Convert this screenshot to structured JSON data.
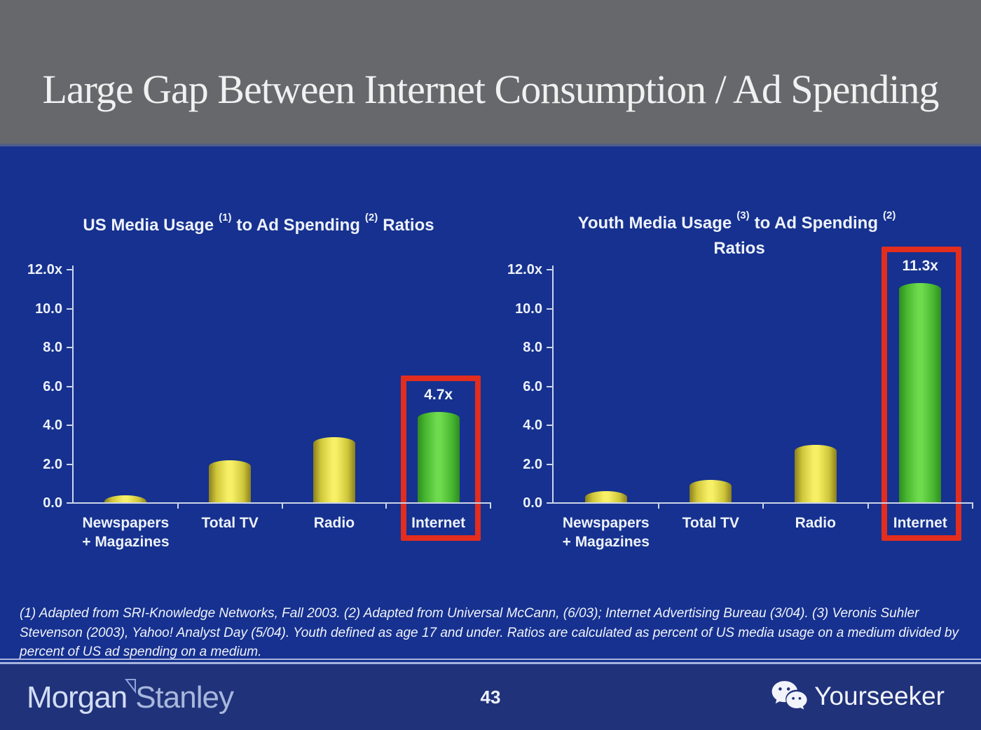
{
  "slide": {
    "title": "Large Gap Between Internet Consumption / Ad Spending",
    "footnote": "(1) Adapted from SRI-Knowledge Networks, Fall 2003.  (2) Adapted from Universal McCann, (6/03); Internet Advertising Bureau (3/04). (3) Veronis Suhler Stevenson (2003), Yahoo! Analyst Day (5/04).  Youth defined as age 17 and under.  Ratios are calculated as percent of US media usage on a medium divided by percent of US ad spending on a medium.",
    "page_number": "43",
    "footer": {
      "logo_morgan": "Morgan",
      "logo_stanley": "Stanley",
      "brand": "Yourseeker",
      "wechat_icon": "wechat-icon"
    }
  },
  "colors": {
    "header_gray": "#67686b",
    "background_blue": "#16318f",
    "footer_blue": "#20327a",
    "bar_yellow": "#f7f066",
    "bar_green": "#6eda4d",
    "highlight_red": "#e22d1f",
    "axis_light": "#ccd6ea",
    "text_white": "#eef2fa"
  },
  "chart_data": [
    {
      "type": "bar",
      "title": "US Media Usage (1) to Ad Spending (2) Ratios",
      "title_parts": {
        "t1": "US Media Usage",
        "s1": "(1)",
        "t2": "to Ad Spending",
        "s2": "(2)",
        "t3": "Ratios",
        "line2": ""
      },
      "categories": [
        [
          "Newspapers",
          "+ Magazines"
        ],
        [
          "Total TV"
        ],
        [
          "Radio"
        ],
        [
          "Internet"
        ]
      ],
      "values": [
        0.4,
        2.2,
        3.4,
        4.7
      ],
      "bar_colors": [
        "yellow",
        "yellow",
        "yellow",
        "green"
      ],
      "value_labels": [
        "",
        "",
        "",
        "4.7x"
      ],
      "highlight_index": 3,
      "ylim": [
        0,
        12
      ],
      "yticks": [
        {
          "v": 12,
          "label": "12.0x"
        },
        {
          "v": 10,
          "label": "10.0"
        },
        {
          "v": 8,
          "label": "8.0"
        },
        {
          "v": 6,
          "label": "6.0"
        },
        {
          "v": 4,
          "label": "4.0"
        },
        {
          "v": 2,
          "label": "2.0"
        },
        {
          "v": 0,
          "label": "0.0"
        }
      ],
      "grid": false,
      "legend": "none"
    },
    {
      "type": "bar",
      "title": "Youth Media Usage (3) to Ad Spending (2) Ratios",
      "title_parts": {
        "t1": "Youth Media Usage",
        "s1": "(3)",
        "t2": "to Ad Spending",
        "s2": "(2)",
        "t3": "",
        "line2": "Ratios"
      },
      "categories": [
        [
          "Newspapers",
          "+ Magazines"
        ],
        [
          "Total TV"
        ],
        [
          "Radio"
        ],
        [
          "Internet"
        ]
      ],
      "values": [
        0.6,
        1.2,
        3.0,
        11.3
      ],
      "bar_colors": [
        "yellow",
        "yellow",
        "yellow",
        "green"
      ],
      "value_labels": [
        "",
        "",
        "",
        "11.3x"
      ],
      "highlight_index": 3,
      "ylim": [
        0,
        12
      ],
      "yticks": [
        {
          "v": 12,
          "label": "12.0x"
        },
        {
          "v": 10,
          "label": "10.0"
        },
        {
          "v": 8,
          "label": "8.0"
        },
        {
          "v": 6,
          "label": "6.0"
        },
        {
          "v": 4,
          "label": "4.0"
        },
        {
          "v": 2,
          "label": "2.0"
        },
        {
          "v": 0,
          "label": "0.0"
        }
      ],
      "grid": false,
      "legend": "none"
    }
  ]
}
